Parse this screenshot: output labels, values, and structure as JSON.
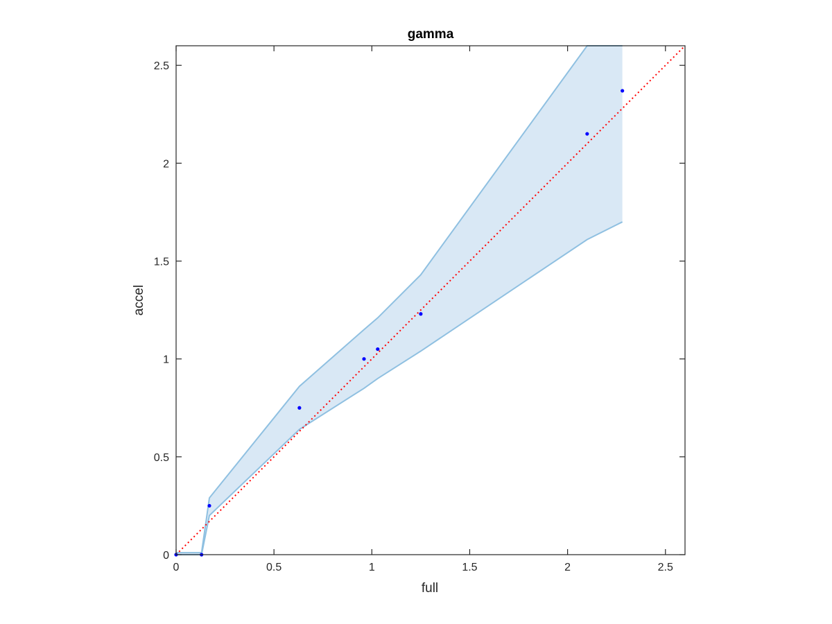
{
  "chart_data": {
    "type": "scatter",
    "title": "gamma",
    "xlabel": "full",
    "ylabel": "accel",
    "xlim": [
      0,
      2.6
    ],
    "ylim": [
      0,
      2.6
    ],
    "xticks": [
      0,
      0.5,
      1,
      1.5,
      2,
      2.5
    ],
    "yticks": [
      0,
      0.5,
      1,
      1.5,
      2,
      2.5
    ],
    "xtick_labels": [
      "0",
      "0.5",
      "1",
      "1.5",
      "2",
      "2.5"
    ],
    "ytick_labels": [
      "0",
      "0.5",
      "1",
      "1.5",
      "2",
      "2.5"
    ],
    "grid": false,
    "points": {
      "x": [
        0,
        0.13,
        0.17,
        0.63,
        0.96,
        1.03,
        1.25,
        2.1,
        2.28
      ],
      "y": [
        0,
        0,
        0.25,
        0.75,
        1.0,
        1.05,
        1.23,
        2.15,
        2.37
      ]
    },
    "band": {
      "x": [
        0,
        0.13,
        0.17,
        0.63,
        0.96,
        1.03,
        1.25,
        2.1,
        2.28
      ],
      "upper": [
        0.01,
        0.01,
        0.29,
        0.86,
        1.15,
        1.21,
        1.43,
        2.65,
        2.65
      ],
      "lower": [
        0,
        0,
        0.2,
        0.64,
        0.85,
        0.9,
        1.04,
        1.61,
        1.7
      ]
    },
    "reference_line": {
      "x": [
        0,
        2.6
      ],
      "y": [
        0,
        2.6
      ],
      "style": "dotted"
    },
    "colors": {
      "points": "#0000ff",
      "band_fill": "#d9e8f5",
      "band_edge": "#8fc0e1",
      "reference_line": "#ff0000",
      "axes": "#262626"
    }
  }
}
